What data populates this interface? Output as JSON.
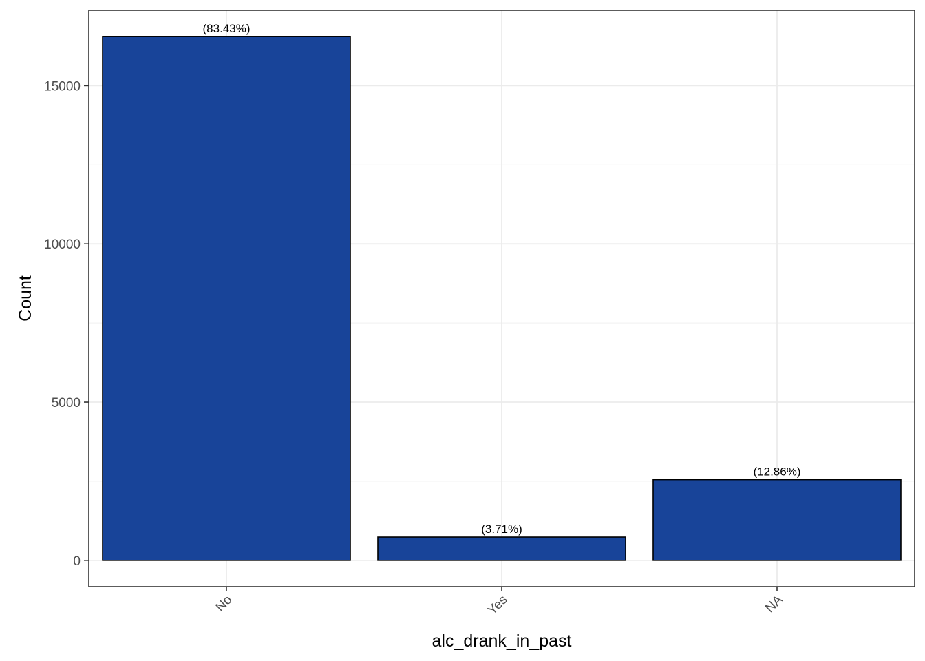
{
  "chart_data": {
    "type": "bar",
    "title": "",
    "xlabel": "alc_drank_in_past",
    "ylabel": "Count",
    "categories": [
      "No",
      "Yes",
      "NA"
    ],
    "values": [
      16550,
      736,
      2551
    ],
    "data_labels": [
      "(83.43%)",
      "(3.71%)",
      "(12.86%)"
    ],
    "yticks": [
      0,
      5000,
      10000,
      15000
    ],
    "ytick_labels": [
      "0",
      "5000",
      "10000",
      "15000"
    ],
    "ylim": [
      -830,
      17380
    ],
    "grid": true,
    "x_tick_rotation_deg": -45,
    "colors": {
      "bar_fill": "#184499",
      "bar_stroke": "#000000",
      "grid_major": "#ebebeb",
      "grid_minor": "#f3f3f3",
      "panel_border": "#333333",
      "tick_text": "#4d4d4d"
    }
  }
}
